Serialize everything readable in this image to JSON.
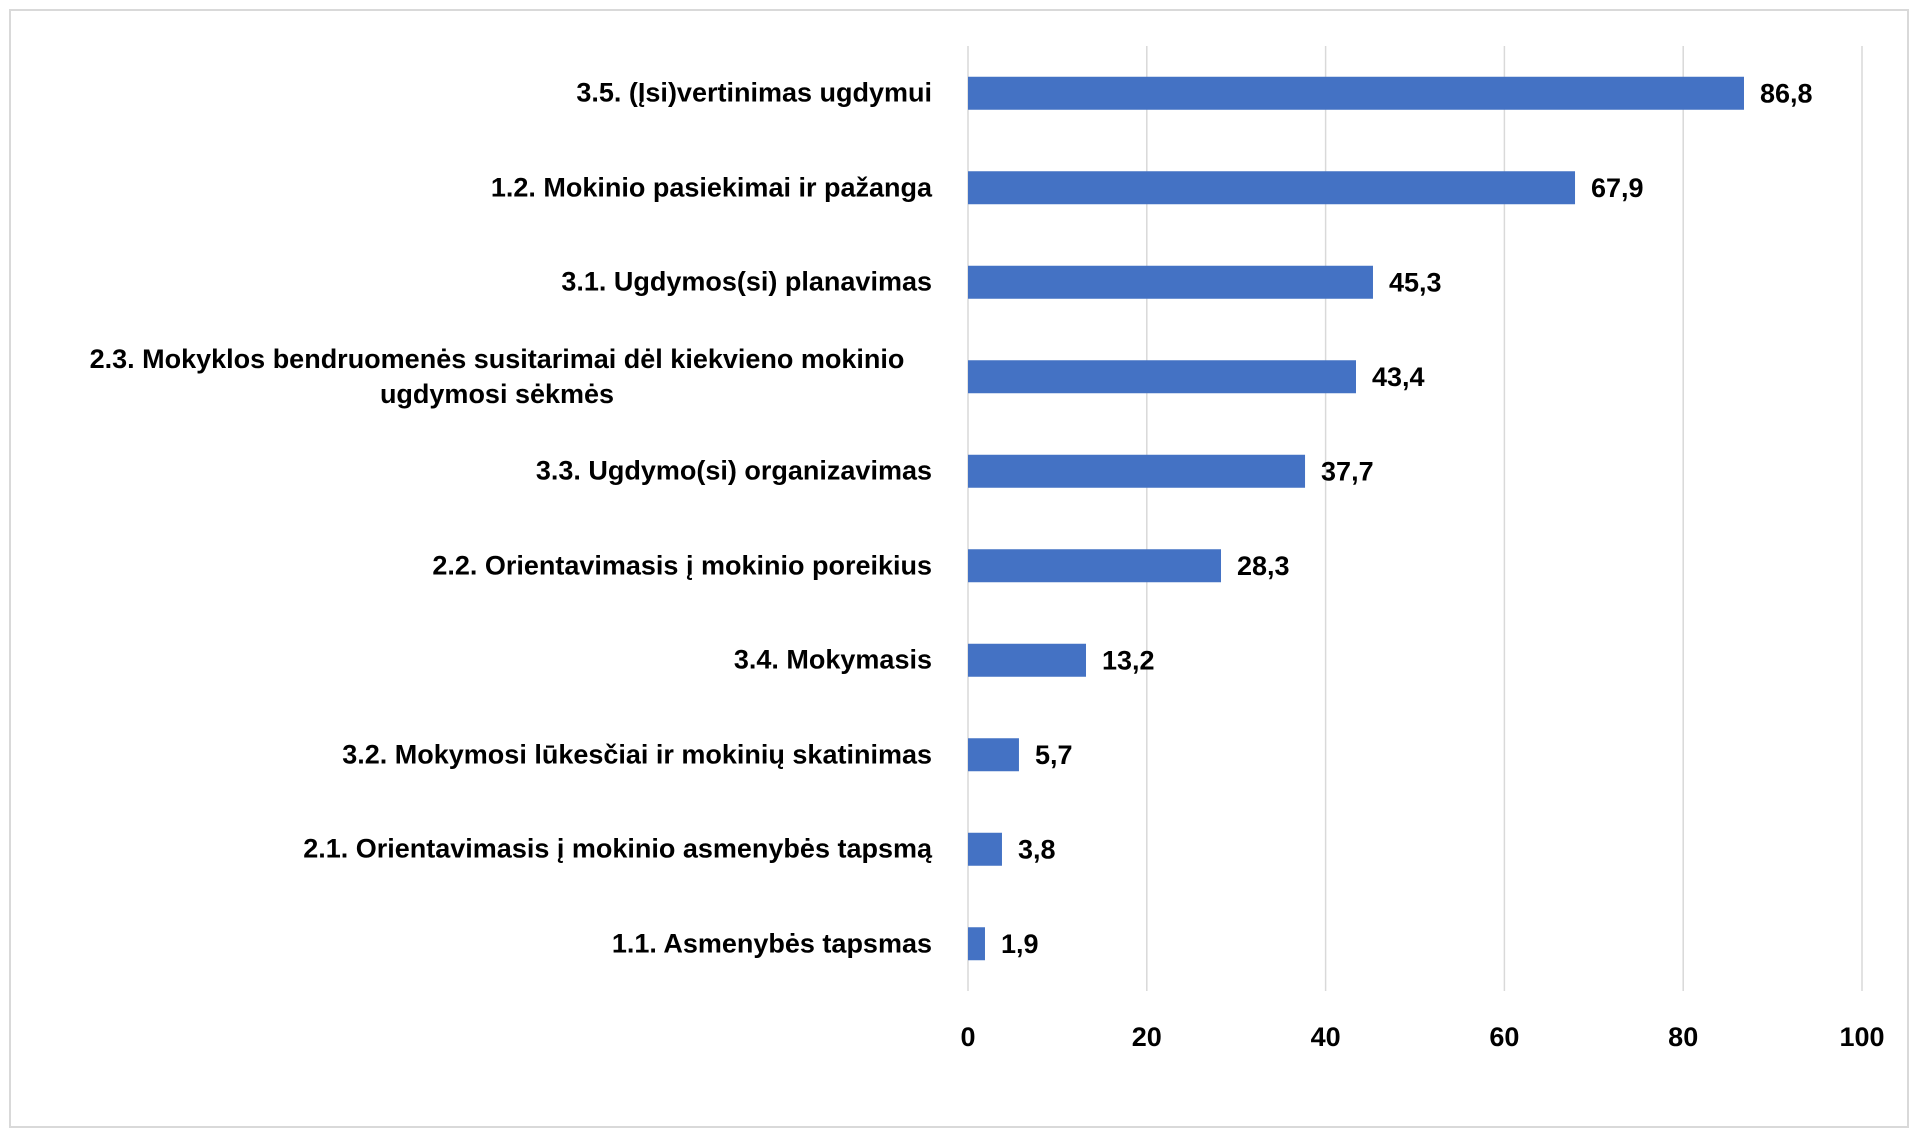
{
  "chart_data": {
    "type": "bar",
    "orientation": "horizontal",
    "categories": [
      "3.5. (Įsi)vertinimas ugdymui",
      "1.2. Mokinio pasiekimai  ir pažanga",
      "3.1. Ugdymos(si) planavimas",
      "2.3. Mokyklos bendruomenės susitarimai dėl kiekvieno mokinio ugdymosi sėkmės",
      "3.3. Ugdymo(si) organizavimas",
      "2.2. Orientavimasis į mokinio poreikius",
      "3.4. Mokymasis",
      "3.2. Mokymosi lūkesčiai ir mokinių skatinimas",
      "2.1. Orientavimasis į mokinio asmenybės tapsmą",
      "1.1. Asmenybės tapsmas"
    ],
    "values": [
      86.8,
      67.9,
      45.3,
      43.4,
      37.7,
      28.3,
      13.2,
      5.7,
      3.8,
      1.9
    ],
    "value_labels": [
      "86,8",
      "67,9",
      "45,3",
      "43,4",
      "37,7",
      "28,3",
      "13,2",
      "5,7",
      "3,8",
      "1,9"
    ],
    "color": "#4472c4",
    "xlim": [
      0,
      100
    ],
    "xticks": [
      0,
      20,
      40,
      60,
      80,
      100
    ],
    "grid": true
  }
}
